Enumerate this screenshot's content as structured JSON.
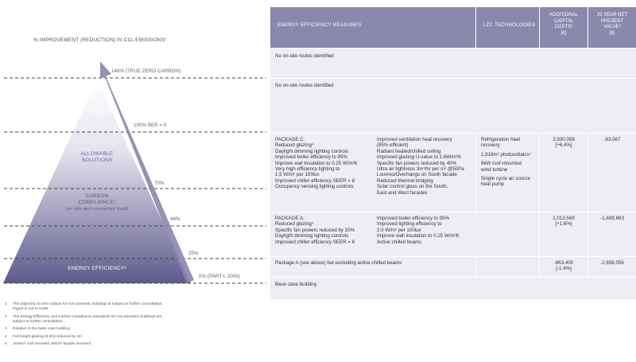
{
  "diagram": {
    "title": "% IMPROVEMENT (REDUCTION) IN CO₂ EMISSIONS¹",
    "levels": [
      {
        "label": "146% (TRUE ZERO CARBON)"
      },
      {
        "label": "100% BER = 0"
      },
      {
        "label": "70%"
      },
      {
        "label": "44%"
      },
      {
        "label": "25%"
      },
      {
        "label": "0% (PART L 2006)"
      }
    ],
    "pyramid": {
      "allowable_l1": "ALLOWABLE",
      "allowable_l2": "SOLUTIONS",
      "carbon_l1": "CARBON",
      "carbon_l2": "COMPLIANCE²",
      "carbon_l3": "(on site and connected heat)",
      "energy": "ENERGY EFFICIENCY³"
    },
    "colors": {
      "pyramid_top": "#ffffff",
      "pyramid_bottom": "#5e5a8c",
      "arrow": "#8986ad",
      "header": "#8a88ad",
      "row": "#eeedf3"
    }
  },
  "footnotes": [
    {
      "num": "1",
      "text": "The trajectory to zero carbon for non-domestic buildings is subject to further consultation.",
      "text2": "Figure is not to scale"
    },
    {
      "num": "2",
      "text": "The Energy Efficiency and Carbon Compliance standards for non-domestic buildings are",
      "text2": "subject to further consultation"
    },
    {
      "num": "3",
      "text": "Relative to the base case building",
      "text2": ""
    },
    {
      "num": "4",
      "text": "Full height glazing (3.9m) reduced by 2m",
      "text2": ""
    },
    {
      "num": "5",
      "text": "1026m² roof mounted, 892m² façade mounted",
      "text2": ""
    }
  ],
  "table": {
    "headers": {
      "measures": "ENERGY EFFICIENCY MEASURES",
      "lzc": "LZC TECHNOLOGIES",
      "cost_l1": "ADDITIONAL",
      "cost_l2": "CAPITAL",
      "cost_l3": "COSTS³",
      "cost_l4": "(€)",
      "npv_l1": "25 YEAR NET",
      "npv_l2": "PRESENT",
      "npv_l3": "VALUE³",
      "npv_l4": "(€)"
    },
    "row1": {
      "text": "No on-site routes identified"
    },
    "row2": {
      "text": "No on-site routes identified"
    },
    "row3": {
      "col1": [
        "PACKAGE C:",
        "Reduced glazing⁴",
        "Daylight dimming lighting controls",
        "Improved boiler efficiency to 95%",
        "Improve wall insulation to 0.25 W/m²K",
        "Very high efficiency lighting to",
        "1.5 W/m² per 100lux",
        "Improved chiller efficiency SEER = 8",
        "Occupancy sensing lighting controls"
      ],
      "col2": [
        "Improved ventilation heat recovery",
        "(85% efficient)",
        "Radiant heated/chilled ceiling",
        "Improved glazing U-value to 1.6W/m²K",
        "Specific fan powers reduced by 40%",
        "Ultra air tightness 3m³/hr per m² @50Pa",
        "Louvres/Overhangs on South facade",
        "Reduced thermal bridging",
        "Solar control glass on the South,",
        "East and West facades"
      ],
      "lzc": [
        "Refrigeration heat",
        "recovery",
        "1,918m² photovoltaics⁵",
        "6kW roof-mounted",
        "wind turbine",
        "Single cycle air source",
        "heat pump"
      ],
      "cost": "3,930,058",
      "cost_pct": "[+6.4%]",
      "npv": "-83,067"
    },
    "row4": {
      "col1": [
        "PACKAGE A:",
        "Reduced glazing⁴",
        "Specific fan powers reduced by 20%",
        "Daylight dimming lighting controls",
        "Improved chiller efficiency SEER = 6"
      ],
      "col2": [
        "Improved boiler efficiency to 95%",
        "Improved lighting efficiency to",
        "2.0 W/m² per 100lux",
        "Improve wall insulation to 0.25 W/m²K",
        "Active chilled beams"
      ],
      "cost": "1,013,569",
      "cost_pct": "[+1.6%]",
      "npv": "-1,699,663"
    },
    "row5": {
      "text": "Package A (see above) but excluding active chilled beams",
      "cost": "-863,400",
      "cost_pct": "[-1.4%]",
      "npv": "-2,658,056"
    },
    "row6": {
      "text": "Base case building"
    }
  }
}
